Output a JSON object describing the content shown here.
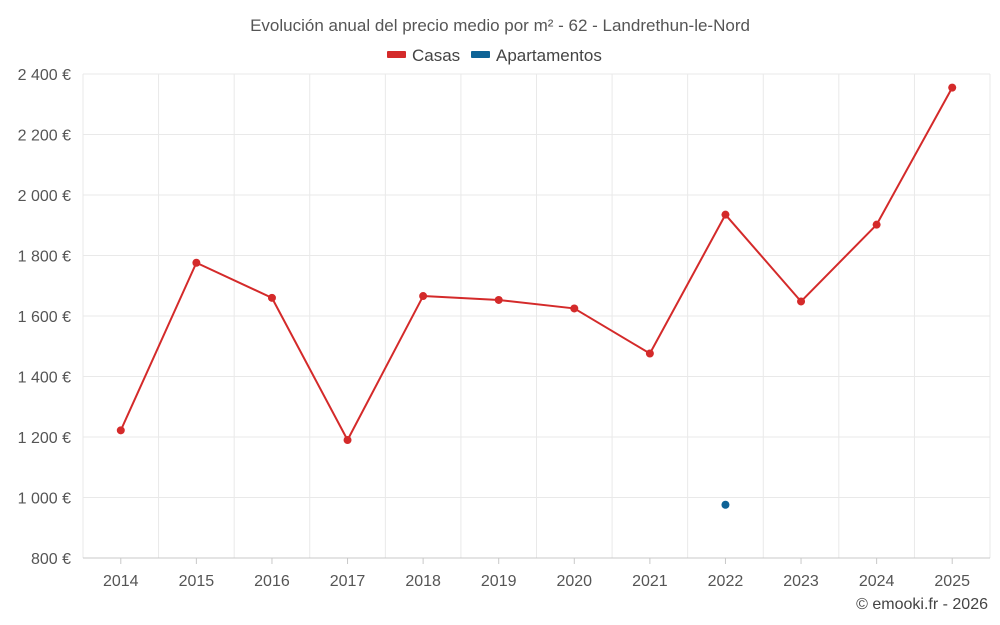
{
  "chart_data": {
    "type": "line",
    "title": "Evolución anual del precio medio por m² - 62 - Landrethun-le-Nord",
    "categories": [
      "2014",
      "2015",
      "2016",
      "2017",
      "2018",
      "2019",
      "2020",
      "2021",
      "2022",
      "2023",
      "2024",
      "2025"
    ],
    "y_ticks": [
      "800 €",
      "1 000 €",
      "1 200 €",
      "1 400 €",
      "1 600 €",
      "1 800 €",
      "2 000 €",
      "2 200 €",
      "2 400 €"
    ],
    "ylim": [
      800,
      2400
    ],
    "grid": true,
    "legend_position": "top-center",
    "series": [
      {
        "name": "Casas",
        "color": "#d42a2a",
        "values": [
          1222,
          1776,
          1660,
          1190,
          1666,
          1653,
          1625,
          1476,
          1935,
          1648,
          1902,
          2355
        ]
      },
      {
        "name": "Apartamentos",
        "color": "#0e6396",
        "values": [
          null,
          null,
          null,
          null,
          null,
          null,
          null,
          null,
          976,
          null,
          null,
          null
        ]
      }
    ],
    "credit": "© emooki.fr - 2026"
  }
}
